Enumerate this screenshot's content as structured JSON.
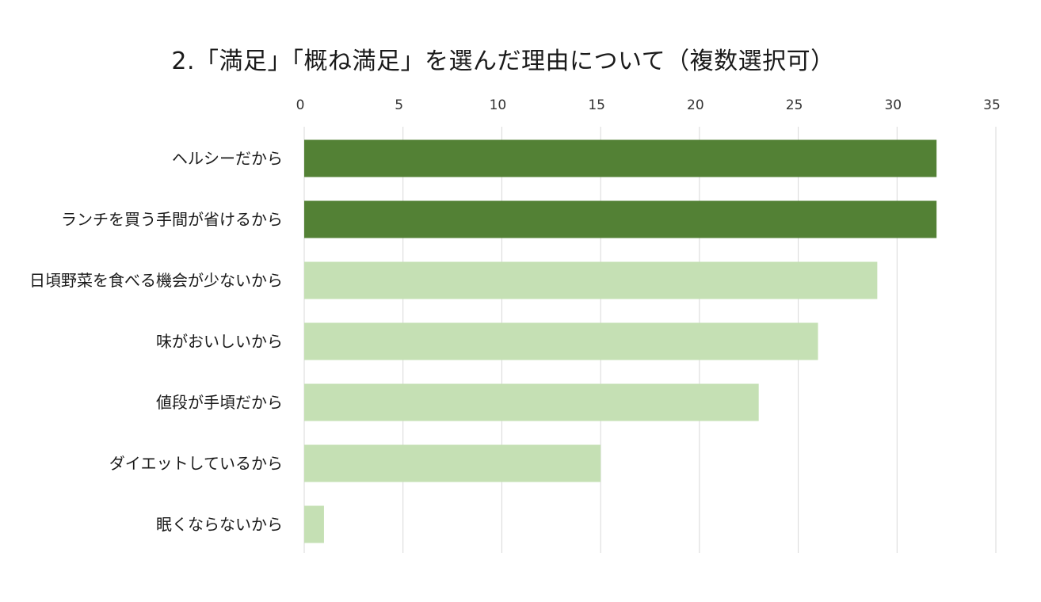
{
  "chart_data": {
    "type": "bar",
    "orientation": "horizontal",
    "title": "2.「満足」「概ね満足」を選んだ理由について（複数選択可）",
    "categories": [
      "ヘルシーだから",
      "ランチを買う手間が省けるから",
      "日頃野菜を食べる機会が少ないから",
      "味がおいしいから",
      "値段が手頃だから",
      "ダイエットしているから",
      "眠くならないから"
    ],
    "values": [
      32,
      32,
      29,
      26,
      23,
      15,
      1
    ],
    "xlim": [
      0,
      35
    ],
    "xticks": [
      0,
      5,
      10,
      15,
      20,
      25,
      30,
      35
    ],
    "x_axis_position": "top",
    "grid": true,
    "legend": false,
    "colors": {
      "highlight": "#538135",
      "default": "#c5e0b4",
      "grid": "#d9d9d9"
    },
    "highlighted_categories": [
      "ヘルシーだから",
      "ランチを買う手間が省けるから"
    ]
  }
}
